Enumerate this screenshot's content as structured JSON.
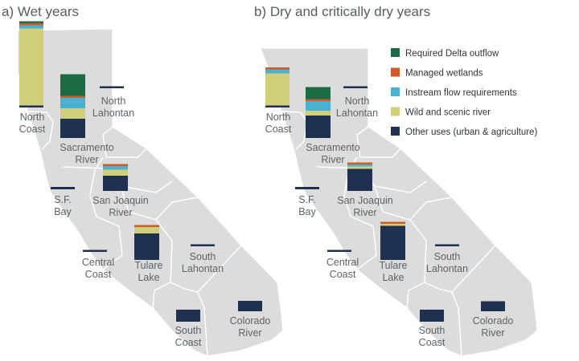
{
  "panels": [
    {
      "id": "wet",
      "title": "a) Wet years",
      "regions": [
        {
          "key": "north_coast",
          "label_lines": [
            "North",
            "Coast"
          ],
          "stack": [
            {
              "use": "other",
              "value": 0.5
            },
            {
              "use": "wild",
              "value": 19.2
            },
            {
              "use": "instream",
              "value": 0.8
            },
            {
              "use": "wetlands",
              "value": 0.1
            },
            {
              "use": "delta",
              "value": 0.3
            }
          ]
        },
        {
          "key": "sacramento",
          "label_lines": [
            "Sacramento",
            "River"
          ],
          "stack": [
            {
              "use": "other",
              "value": 4.8
            },
            {
              "use": "wild",
              "value": 2.6
            },
            {
              "use": "instream",
              "value": 2.6
            },
            {
              "use": "wetlands",
              "value": 0.2
            },
            {
              "use": "delta",
              "value": 5.4
            }
          ]
        },
        {
          "key": "north_lahontan",
          "label_lines": [
            "North",
            "Lahontan"
          ],
          "stack": [
            {
              "use": "other",
              "value": 0.5
            }
          ]
        },
        {
          "key": "sf_bay",
          "label_lines": [
            "S.F.",
            "Bay"
          ],
          "stack": [
            {
              "use": "other",
              "value": 0.6
            }
          ]
        },
        {
          "key": "san_joaquin",
          "label_lines": [
            "San Joaquin",
            "River"
          ],
          "stack": [
            {
              "use": "other",
              "value": 3.8
            },
            {
              "use": "wild",
              "value": 1.5
            },
            {
              "use": "instream",
              "value": 0.9
            },
            {
              "use": "wetlands",
              "value": 0.4
            }
          ]
        },
        {
          "key": "central_coast",
          "label_lines": [
            "Central",
            "Coast"
          ],
          "stack": [
            {
              "use": "other",
              "value": 0.5
            }
          ]
        },
        {
          "key": "tulare",
          "label_lines": [
            "Tulare",
            "Lake"
          ],
          "stack": [
            {
              "use": "other",
              "value": 6.6
            },
            {
              "use": "wild",
              "value": 1.6
            },
            {
              "use": "wetlands",
              "value": 0.2
            }
          ]
        },
        {
          "key": "south_lahontan",
          "label_lines": [
            "South",
            "Lahontan"
          ],
          "stack": [
            {
              "use": "other",
              "value": 0.4
            }
          ]
        },
        {
          "key": "south_coast",
          "label_lines": [
            "South",
            "Coast"
          ],
          "stack": [
            {
              "use": "other",
              "value": 3.0
            }
          ]
        },
        {
          "key": "colorado",
          "label_lines": [
            "Colorado",
            "River"
          ],
          "stack": [
            {
              "use": "other",
              "value": 2.6
            }
          ]
        }
      ]
    },
    {
      "id": "dry",
      "title": "b) Dry and critically dry years",
      "regions": [
        {
          "key": "north_coast",
          "label_lines": [
            "North",
            "Coast"
          ],
          "stack": [
            {
              "use": "other",
              "value": 0.5
            },
            {
              "use": "wild",
              "value": 8.0
            },
            {
              "use": "instream",
              "value": 1.0
            },
            {
              "use": "wetlands",
              "value": 0.1
            }
          ]
        },
        {
          "key": "sacramento",
          "label_lines": [
            "Sacramento",
            "River"
          ],
          "stack": [
            {
              "use": "other",
              "value": 5.6
            },
            {
              "use": "wild",
              "value": 1.2
            },
            {
              "use": "instream",
              "value": 2.4
            },
            {
              "use": "wetlands",
              "value": 0.3
            },
            {
              "use": "delta",
              "value": 3.0
            }
          ]
        },
        {
          "key": "north_lahontan",
          "label_lines": [
            "North",
            "Lahontan"
          ],
          "stack": [
            {
              "use": "other",
              "value": 0.5
            }
          ]
        },
        {
          "key": "sf_bay",
          "label_lines": [
            "S.F.",
            "Bay"
          ],
          "stack": [
            {
              "use": "other",
              "value": 0.6
            }
          ]
        },
        {
          "key": "san_joaquin",
          "label_lines": [
            "San Joaquin",
            "River"
          ],
          "stack": [
            {
              "use": "other",
              "value": 5.5
            },
            {
              "use": "wild",
              "value": 0.6
            },
            {
              "use": "instream",
              "value": 0.4
            },
            {
              "use": "wetlands",
              "value": 0.4
            }
          ]
        },
        {
          "key": "central_coast",
          "label_lines": [
            "Central",
            "Coast"
          ],
          "stack": [
            {
              "use": "other",
              "value": 0.5
            }
          ]
        },
        {
          "key": "tulare",
          "label_lines": [
            "Tulare",
            "Lake"
          ],
          "stack": [
            {
              "use": "other",
              "value": 8.5
            },
            {
              "use": "wild",
              "value": 0.5
            },
            {
              "use": "wetlands",
              "value": 0.2
            }
          ]
        },
        {
          "key": "south_lahontan",
          "label_lines": [
            "South",
            "Lahontan"
          ],
          "stack": [
            {
              "use": "other",
              "value": 0.4
            }
          ]
        },
        {
          "key": "south_coast",
          "label_lines": [
            "South",
            "Coast"
          ],
          "stack": [
            {
              "use": "other",
              "value": 3.0
            }
          ]
        },
        {
          "key": "colorado",
          "label_lines": [
            "Colorado",
            "River"
          ],
          "stack": [
            {
              "use": "other",
              "value": 2.5
            }
          ]
        }
      ]
    }
  ],
  "legend": [
    {
      "use": "delta",
      "label": "Required Delta outflow",
      "color": "#1d6b45"
    },
    {
      "use": "wetlands",
      "label": "Managed wetlands",
      "color": "#d15a2a"
    },
    {
      "use": "instream",
      "label": "Instream flow requirements",
      "color": "#4bb1d3"
    },
    {
      "use": "wild",
      "label": "Wild and scenic river",
      "color": "#cfcf7c"
    },
    {
      "use": "other",
      "label": "Other uses (urban & agriculture)",
      "color": "#1f3050"
    }
  ]
}
